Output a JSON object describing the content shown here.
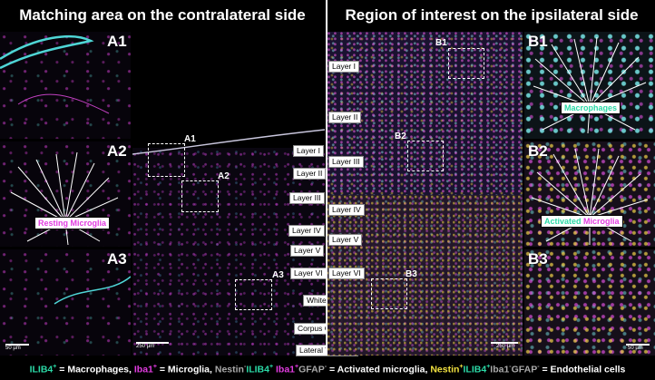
{
  "headers": {
    "left": "Matching area on the contralateral side",
    "right": "Region of interest on the ipsilateral side"
  },
  "panels": {
    "A1": "A1",
    "A2": "A2",
    "A3": "A3",
    "B1": "B1",
    "B2": "B2",
    "B3": "B3"
  },
  "roi_labels": {
    "A1": "A1",
    "A2": "A2",
    "A3": "A3",
    "B1": "B1",
    "B2": "B2",
    "B3": "B3"
  },
  "left_layers": [
    "Layer I",
    "Layer II",
    "Layer III",
    "Layer IV",
    "Layer V",
    "Layer VI",
    "White Matter",
    "Corpus Callosum",
    "Lateral Ventricle"
  ],
  "right_layers": [
    "Layer I",
    "Layer II",
    "Layer III",
    "Layer IV",
    "Layer V",
    "Layer VI"
  ],
  "callouts": {
    "resting": {
      "word1": "Resting",
      "word2": "Microglia",
      "color1": "#e23ce0",
      "color2": "#e23ce0"
    },
    "macrophages": {
      "text": "Macrophages",
      "color": "#2bd9a6"
    },
    "activated": {
      "word1": "Activated",
      "word2": "Microglia",
      "color1": "#2bd9a6",
      "color2": "#e23ce0"
    }
  },
  "scale_bars": {
    "small_left": "50 µm",
    "main_left": "250 µm",
    "main_right": "250 µm",
    "small_right": "50 µm"
  },
  "legend": {
    "t1": "ILIB4",
    "s1": "+",
    "t2": " = Macrophages, ",
    "t3": "Iba1",
    "s3": "+",
    "t4": " = Microglia, ",
    "t5": "Nestin",
    "s5": "-",
    "t6": "ILIB4",
    "s6": "+",
    "t7": " Iba1",
    "s7": "+",
    "t8": "GFAP",
    "s8": "-",
    "t9": " = Activated microglia, ",
    "t10": "Nestin",
    "s10": "+",
    "t11": "ILIB4",
    "s11": "+",
    "t12": "Iba1",
    "s12": "-",
    "t13": "GFAP",
    "s13": "-",
    "t14": " = Endothelial cells"
  },
  "colors": {
    "ilib4": "#2bd9a6",
    "iba1": "#e23ce0",
    "nestin": "#f0e040",
    "gray": "#aaaaaa"
  }
}
